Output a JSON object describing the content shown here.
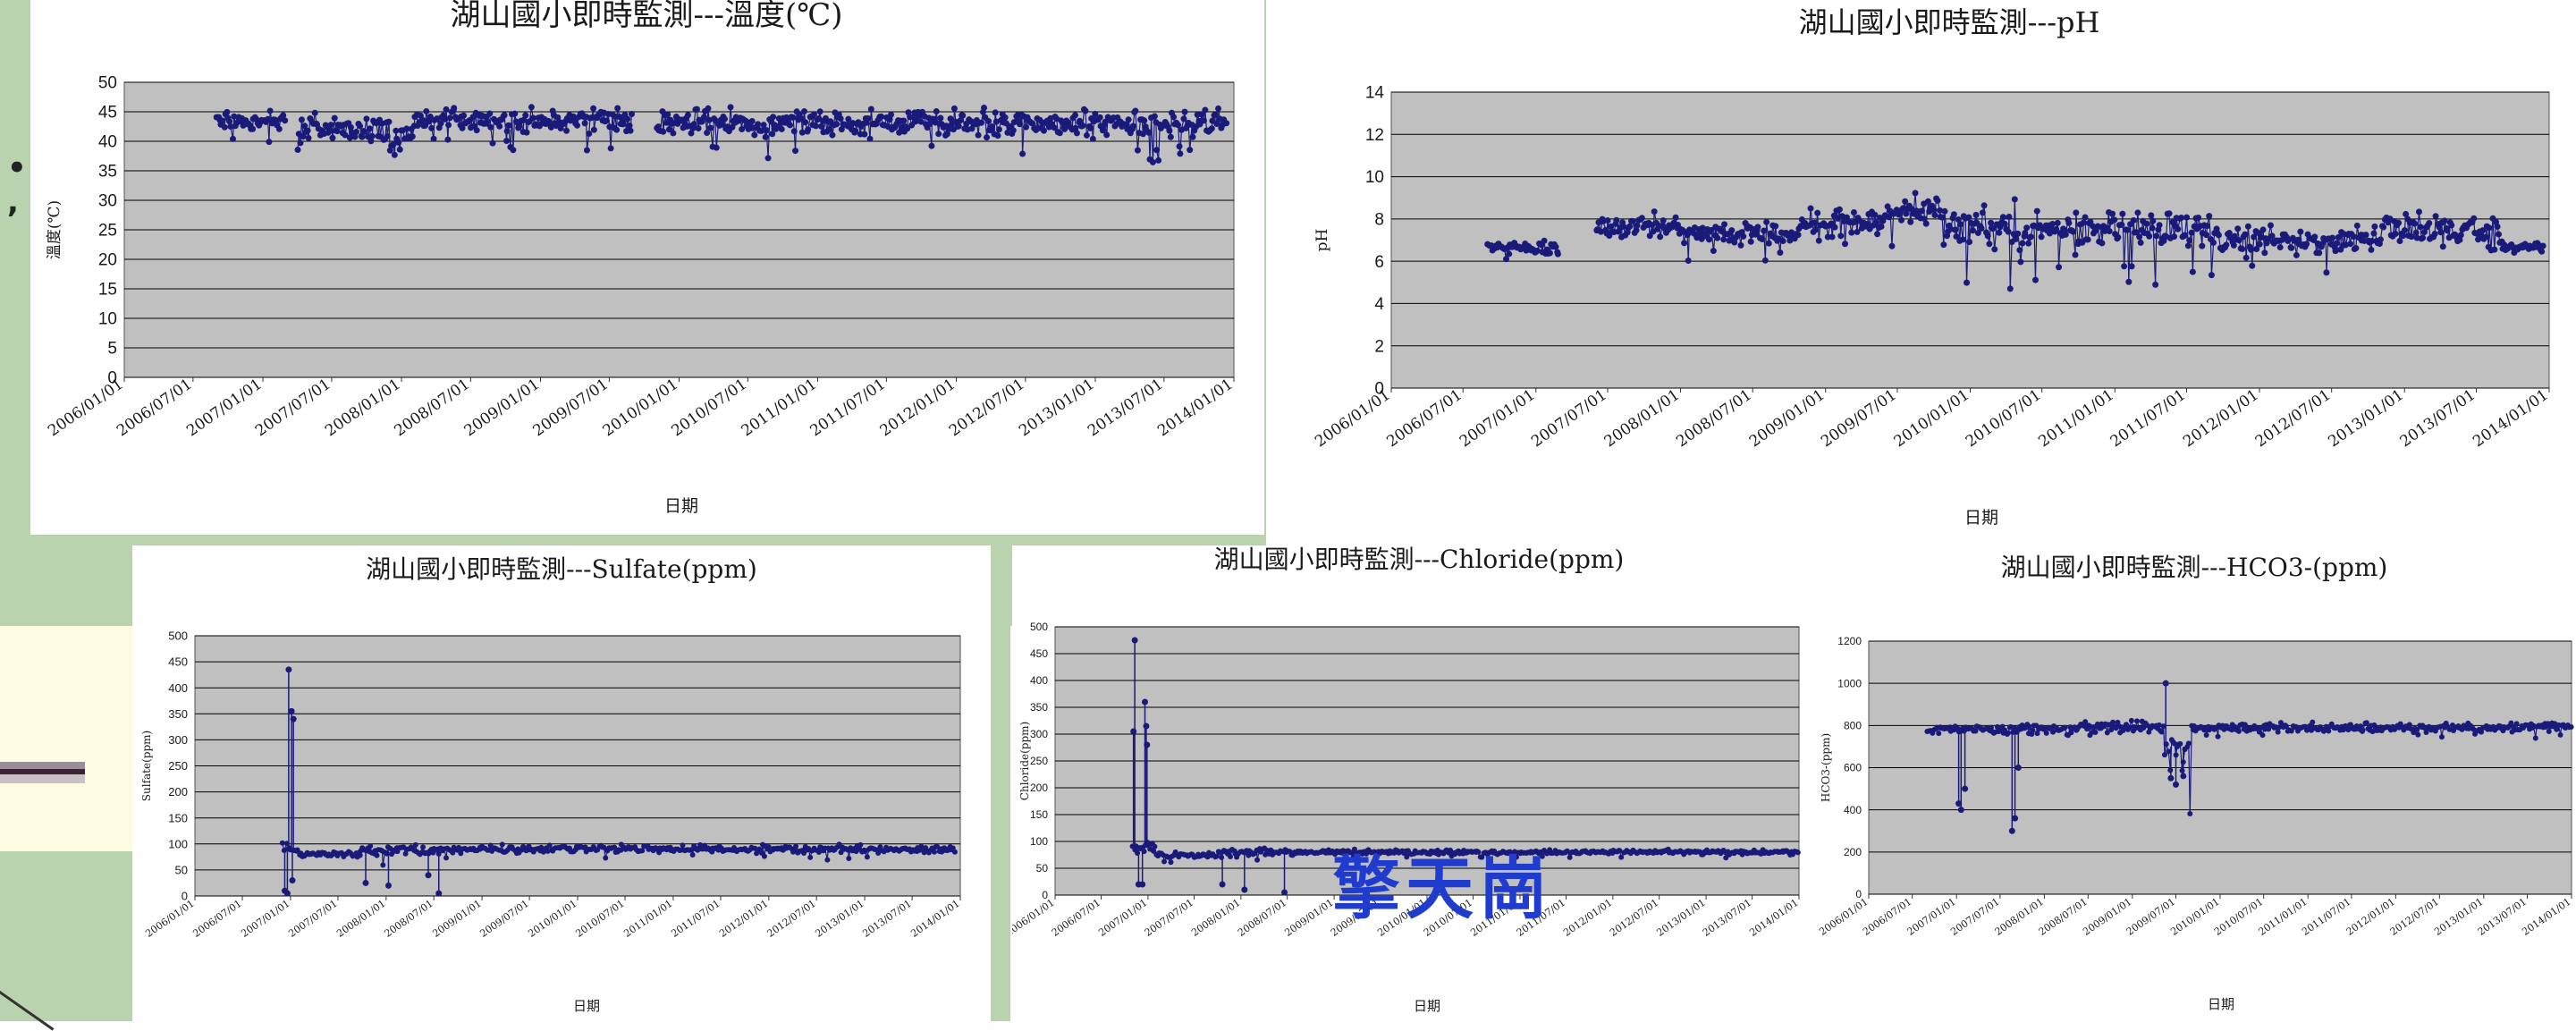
{
  "watermark": "擎天崗",
  "colors": {
    "plot_bg": "#c0c0c0",
    "marker": "#1a1a7a",
    "grid": "#000000",
    "green": "#b9d3ae"
  },
  "dates": [
    "2006/01/01",
    "2006/07/01",
    "2007/01/01",
    "2007/07/01",
    "2008/01/01",
    "2008/07/01",
    "2009/01/01",
    "2009/07/01",
    "2010/01/01",
    "2010/07/01",
    "2011/01/01",
    "2011/07/01",
    "2012/01/01",
    "2012/07/01",
    "2013/01/01",
    "2013/07/01",
    "2014/01/01"
  ],
  "chart_data": [
    {
      "id": "temp",
      "type": "scatter",
      "title": "湖山國小即時監測---溫度(℃)",
      "xlabel": "日期",
      "ylabel": "溫度(℃)",
      "xlim": [
        "2006/01/01",
        "2014/01/01"
      ],
      "ylim": [
        0,
        50
      ],
      "yticks": [
        0,
        5,
        10,
        15,
        20,
        25,
        30,
        35,
        40,
        45,
        50
      ],
      "grid": true,
      "series": [
        {
          "values": [
            {
              "start": "2006/09/01",
              "end": "2007/03/01",
              "mean": 43.5,
              "spread": 1.5
            },
            {
              "start": "2007/04/01",
              "end": "2007/12/01",
              "mean": 42,
              "spread": 2
            },
            {
              "start": "2007/12/01",
              "end": "2008/02/01",
              "mean": 40,
              "spread": 2.5
            },
            {
              "start": "2008/02/01",
              "end": "2009/09/01",
              "mean": 43.5,
              "spread": 2
            },
            {
              "start": "2009/11/01",
              "end": "2013/12/15",
              "mean": 43,
              "spread": 2.2
            }
          ]
        }
      ]
    },
    {
      "id": "ph",
      "type": "scatter",
      "title": "湖山國小即時監測---pH",
      "xlabel": "日期",
      "ylabel": "pH",
      "xlim": [
        "2006/01/01",
        "2014/01/01"
      ],
      "ylim": [
        0,
        14
      ],
      "yticks": [
        0,
        2,
        4,
        6,
        8,
        10,
        12,
        14
      ],
      "grid": true,
      "series": [
        {
          "values": [
            {
              "start": "2006/09/01",
              "end": "2007/03/01",
              "mean": 6.6,
              "spread": 0.3
            },
            {
              "start": "2007/06/01",
              "end": "2008/01/01",
              "mean": 7.6,
              "spread": 0.6
            },
            {
              "start": "2008/01/01",
              "end": "2008/11/01",
              "mean": 7.3,
              "spread": 0.5
            },
            {
              "start": "2008/11/01",
              "end": "2009/06/01",
              "mean": 7.8,
              "spread": 0.6
            },
            {
              "start": "2009/06/01",
              "end": "2009/11/01",
              "mean": 8.4,
              "spread": 0.7
            },
            {
              "start": "2009/11/01",
              "end": "2011/09/01",
              "mean": 7.5,
              "spread": 1
            },
            {
              "start": "2011/09/01",
              "end": "2012/11/01",
              "mean": 7,
              "spread": 0.6
            },
            {
              "start": "2012/11/01",
              "end": "2013/09/01",
              "mean": 7.5,
              "spread": 0.8
            },
            {
              "start": "2013/09/01",
              "end": "2013/12/20",
              "mean": 6.6,
              "spread": 0.3
            }
          ]
        }
      ]
    },
    {
      "id": "sulfate",
      "type": "scatter",
      "title": "湖山國小即時監測---Sulfate(ppm)",
      "xlabel": "日期",
      "ylabel": "Sulfate(ppm)",
      "xlim": [
        "2006/01/01",
        "2014/01/01"
      ],
      "ylim": [
        0,
        500
      ],
      "yticks": [
        0,
        50,
        100,
        150,
        200,
        250,
        300,
        350,
        400,
        450,
        500
      ],
      "grid": true,
      "spikes": [
        {
          "date": "2006/12/25",
          "value": 435
        },
        {
          "date": "2007/01/05",
          "value": 355
        },
        {
          "date": "2007/01/12",
          "value": 340
        }
      ],
      "dips": [
        {
          "date": "2006/12/10",
          "value": 10
        },
        {
          "date": "2006/12/20",
          "value": 5
        },
        {
          "date": "2007/01/08",
          "value": 30
        },
        {
          "date": "2007/10/15",
          "value": 25
        },
        {
          "date": "2008/01/10",
          "value": 20
        },
        {
          "date": "2008/06/10",
          "value": 40
        },
        {
          "date": "2008/07/20",
          "value": 5
        }
      ],
      "series": [
        {
          "values": [
            {
              "start": "2006/12/01",
              "end": "2007/02/01",
              "mean": 92,
              "spread": 10
            },
            {
              "start": "2007/02/01",
              "end": "2007/10/01",
              "mean": 80,
              "spread": 6
            },
            {
              "start": "2007/10/01",
              "end": "2008/08/01",
              "mean": 88,
              "spread": 10
            },
            {
              "start": "2008/08/01",
              "end": "2013/12/15",
              "mean": 90,
              "spread": 7
            }
          ]
        }
      ]
    },
    {
      "id": "chloride",
      "type": "scatter",
      "title": "湖山國小即時監測---Chloride(ppm)",
      "xlabel": "日期",
      "ylabel": "Chloride(ppm)",
      "xlim": [
        "2006/01/01",
        "2014/01/01"
      ],
      "ylim": [
        0,
        500
      ],
      "yticks": [
        0,
        50,
        100,
        150,
        200,
        250,
        300,
        350,
        400,
        450,
        500
      ],
      "grid": true,
      "spikes": [
        {
          "date": "2006/11/10",
          "value": 475
        },
        {
          "date": "2006/11/05",
          "value": 305
        },
        {
          "date": "2006/12/20",
          "value": 360
        },
        {
          "date": "2006/12/25",
          "value": 315
        },
        {
          "date": "2006/12/28",
          "value": 280
        }
      ],
      "dips": [
        {
          "date": "2006/11/25",
          "value": 20
        },
        {
          "date": "2006/12/10",
          "value": 20
        },
        {
          "date": "2007/10/20",
          "value": 20
        },
        {
          "date": "2008/01/15",
          "value": 10
        },
        {
          "date": "2008/06/20",
          "value": 5
        }
      ],
      "series": [
        {
          "values": [
            {
              "start": "2006/11/01",
              "end": "2007/02/01",
              "mean": 88,
              "spread": 10
            },
            {
              "start": "2007/02/01",
              "end": "2007/10/01",
              "mean": 75,
              "spread": 6
            },
            {
              "start": "2007/10/01",
              "end": "2008/08/01",
              "mean": 80,
              "spread": 8
            },
            {
              "start": "2008/08/01",
              "end": "2014/01/01",
              "mean": 80,
              "spread": 4
            }
          ]
        }
      ]
    },
    {
      "id": "hco3",
      "type": "scatter",
      "title": "湖山國小即時監測---HCO3-(ppm)",
      "xlabel": "日期",
      "ylabel": "HCO3-(ppm)",
      "xlim": [
        "2006/01/01",
        "2014/01/01"
      ],
      "ylim": [
        0,
        1200
      ],
      "yticks": [
        0,
        200,
        400,
        600,
        800,
        1000,
        1200
      ],
      "grid": true,
      "spikes": [
        {
          "date": "2009/05/20",
          "value": 1000
        }
      ],
      "dips": [
        {
          "date": "2007/01/10",
          "value": 430
        },
        {
          "date": "2007/01/20",
          "value": 400
        },
        {
          "date": "2007/02/05",
          "value": 500
        },
        {
          "date": "2007/08/20",
          "value": 300
        },
        {
          "date": "2007/09/01",
          "value": 360
        },
        {
          "date": "2007/09/15",
          "value": 600
        },
        {
          "date": "2009/06/10",
          "value": 550
        },
        {
          "date": "2009/07/01",
          "value": 520
        },
        {
          "date": "2009/08/01",
          "value": 560
        }
      ],
      "series": [
        {
          "values": [
            {
              "start": "2006/09/01",
              "end": "2007/09/15",
              "mean": 780,
              "spread": 20
            },
            {
              "start": "2007/09/15",
              "end": "2009/05/15",
              "mean": 790,
              "spread": 30
            },
            {
              "start": "2009/05/15",
              "end": "2009/09/01",
              "mean": 700,
              "spread": 120
            },
            {
              "start": "2009/09/01",
              "end": "2014/01/01",
              "mean": 790,
              "spread": 20
            }
          ]
        }
      ]
    }
  ]
}
